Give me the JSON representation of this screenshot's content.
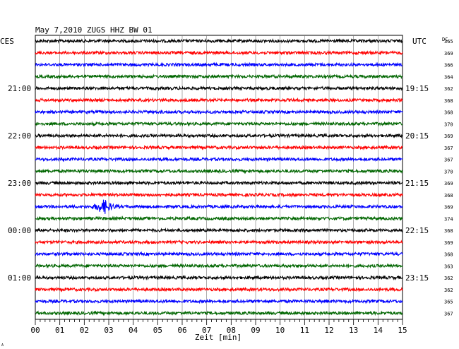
{
  "chart_data": {
    "type": "line",
    "title": "May 7,2010   ZUGS HHZ BW 01",
    "left_axis_label": "CES",
    "right_axis_label": "UTC",
    "dc_label": "DC",
    "xlabel": "Zeit [min]",
    "x_ticks": [
      "00",
      "01",
      "02",
      "03",
      "04",
      "05",
      "06",
      "07",
      "08",
      "09",
      "10",
      "11",
      "12",
      "13",
      "14",
      "15"
    ],
    "xlim": [
      0,
      15
    ],
    "traces_per_hour": 4,
    "trace_colors": [
      "#000000",
      "#ff0000",
      "#0000ff",
      "#006600"
    ],
    "left_hour_labels": [
      "21:00",
      "22:00",
      "23:00",
      "00:00",
      "01:00"
    ],
    "right_hour_labels": [
      "19:15",
      "20:15",
      "21:15",
      "22:15",
      "23:15"
    ],
    "hour_label_trace_indices": [
      4,
      8,
      12,
      16,
      20
    ],
    "dc_offsets": [
      365,
      369,
      366,
      364,
      362,
      368,
      368,
      370,
      369,
      367,
      367,
      370,
      369,
      368,
      369,
      374,
      368,
      369,
      368,
      363,
      362,
      362,
      365,
      367
    ],
    "event": {
      "trace_index": 14,
      "start_min": 2.3,
      "peak_min": 2.85,
      "end_min": 3.6
    },
    "corner_mark": "A"
  }
}
